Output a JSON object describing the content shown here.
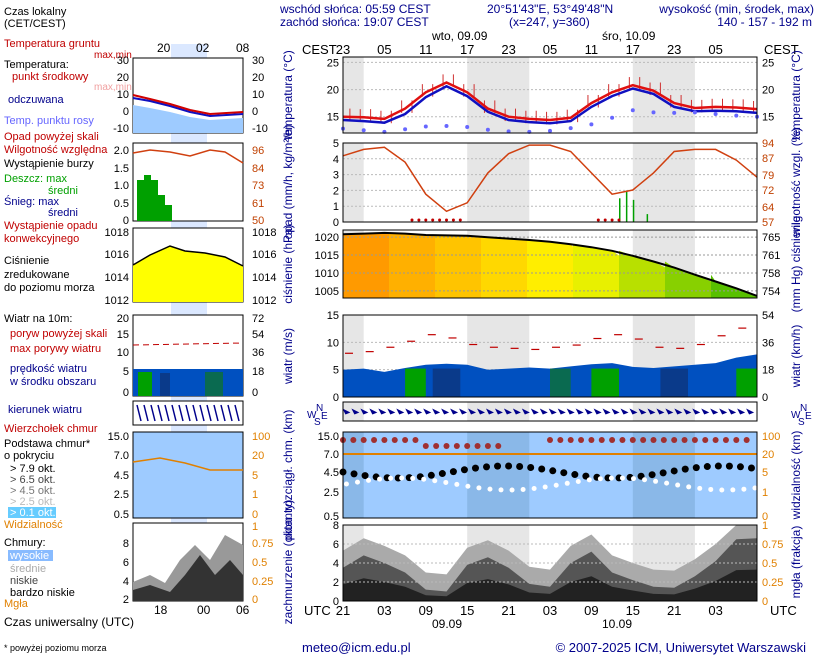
{
  "header": {
    "legend_title": "Czas lokalny (CET/CEST)",
    "sunrise": "wschód słońca: 05:59 CEST",
    "sunset": "zachód słońca: 19:07 CEST",
    "coords": "20°51'43\"E, 53°49'48\"N",
    "grid": "(x=247, y=360)",
    "height_label": "wysokość (min, środek, max)",
    "height_values": "140 - 157 - 192 m",
    "day1": "wto, 09.09",
    "day2": "śro, 10.09",
    "tz_left": "CEST",
    "tz_right": "CEST",
    "utc_left": "UTC",
    "utc_right": "UTC",
    "date1_bottom": "09.09",
    "date2_bottom": "10.09"
  },
  "time_axis": {
    "cest_labels": [
      "23",
      "05",
      "11",
      "17",
      "23",
      "05",
      "11",
      "17",
      "23",
      "05"
    ],
    "utc_labels": [
      "21",
      "03",
      "09",
      "15",
      "21",
      "03",
      "09",
      "15",
      "21",
      "03"
    ]
  },
  "legend": {
    "top_times": [
      "20",
      "02",
      "08"
    ],
    "bottom_times": [
      "18",
      "00",
      "06"
    ],
    "utc_caption": "Czas uniwersalny (UTC)",
    "footnote": "* powyżej poziomu morza",
    "temp": {
      "ground": "Temperatura gruntu",
      "ground_sub": "max,min",
      "title": "Temperatura:",
      "mid": "punkt środkowy",
      "maxmin": "max,min",
      "odczuwana": "odczuwana",
      "dew": "Temp. punktu rosy",
      "yticks": [
        "30",
        "20",
        "10",
        "0",
        "-10"
      ]
    },
    "precip": {
      "above": "Opad powyżej skali",
      "humidity": "Wilgotność względna",
      "storm": "Wystąpienie burzy",
      "rain_max": "Deszcz: max",
      "rain_mid": "średni",
      "snow_max": "Śnieg:   max",
      "snow_mid": "średni",
      "conv1": "Wystąpienie opadu",
      "conv2": "konwekcyjnego",
      "yticks_l": [
        "2.0",
        "1.5",
        "1.0",
        "0.5",
        "0"
      ],
      "yticks_r": [
        "96",
        "84",
        "73",
        "61",
        "50"
      ]
    },
    "pressure": {
      "l1": "Ciśnienie",
      "l2": "zredukowane",
      "l3": "do poziomu morza",
      "yticks": [
        "1018",
        "1016",
        "1014",
        "1012"
      ]
    },
    "wind": {
      "title": "Wiatr na 10m:",
      "gust_above": "poryw powyżej skali",
      "gust_max": "max porywy wiatru",
      "speed": "prędkość wiatru",
      "speed2": "w środku obszaru",
      "yticks_l": [
        "20",
        "15",
        "10",
        "5",
        "0"
      ],
      "yticks_r": [
        "72",
        "54",
        "36",
        "18",
        "0"
      ]
    },
    "direction": {
      "label": "kierunek wiatru"
    },
    "clouds_base": {
      "peak": "Wierzchołek chmur",
      "base1": "Podstawa chmur*",
      "base2": "o pokryciu",
      "o79": "> 7.9 okt.",
      "o65": "> 6.5 okt.",
      "o45": "> 4.5 okt.",
      "o25": "> 2.5 okt.",
      "o01": "> 0.1 okt.",
      "vis": "Widzialność",
      "yticks_l": [
        "15.0",
        "7.0",
        "4.5",
        "2.5",
        "0.5"
      ],
      "yticks_r": [
        "100",
        "20",
        "5",
        "1",
        "0"
      ]
    },
    "clouds": {
      "title": "Chmury:",
      "high": "wysokie",
      "mid": "średnie",
      "low": "niskie",
      "vlow": "bardzo niskie",
      "fog": "Mgła",
      "yticks_l": [
        "8",
        "6",
        "4",
        "2",
        "0"
      ],
      "yticks_r": [
        "1",
        "0.75",
        "0.5",
        "0.25",
        "0"
      ]
    }
  },
  "panels": {
    "temp": {
      "ylabel_l": "temperatura (°C)",
      "ylabel_r": "temperatura (°C)",
      "yticks": [
        "25",
        "20",
        "15"
      ]
    },
    "precip": {
      "ylabel_l": "opad (mm/h, kg/m²/h)",
      "ylabel_r": "wilgotność wzgl. (%)",
      "yticks_l": [
        "5",
        "4",
        "3",
        "2",
        "1",
        "0"
      ],
      "yticks_r": [
        "94",
        "87",
        "79",
        "72",
        "64",
        "57"
      ]
    },
    "pressure": {
      "ylabel_l": "ciśnienie (hPa)",
      "ylabel_r": "(mm Hg) ciśnienie",
      "yticks_l": [
        "1020",
        "1015",
        "1010",
        "1005"
      ],
      "yticks_r": [
        "765",
        "761",
        "758",
        "754"
      ]
    },
    "wind": {
      "ylabel_l": "wiatr (m/s)",
      "ylabel_r": "wiatr (km/h)",
      "yticks_l": [
        "15",
        "10",
        "5",
        "0"
      ],
      "yticks_r": [
        "54",
        "36",
        "18",
        "0"
      ]
    },
    "direction": {
      "compass": "N W S E"
    },
    "cloudbase": {
      "ylabel_l": "pion. rozciągł. chm. (km)",
      "ylabel_r": "widzialność (km)",
      "yticks_l": [
        "15.0",
        "7.0",
        "4.5",
        "2.5",
        "0.5"
      ],
      "yticks_r": [
        "100",
        "20",
        "5",
        "1",
        "0"
      ]
    },
    "cloudcover": {
      "ylabel_l": "zachmurzenie (oktanty)",
      "ylabel_r": "mgła (frakcja)",
      "yticks_l": [
        "8",
        "6",
        "4",
        "2",
        "0"
      ],
      "yticks_r": [
        "1",
        "0.75",
        "0.5",
        "0.25",
        "0"
      ]
    }
  },
  "footer": {
    "email": "meteo@icm.edu.pl",
    "copyright": "© 2007-2025 ICM, Uniwersytet Warszawski"
  },
  "chart_data": {
    "type": "line",
    "x_hours_utc": [
      0,
      3,
      6,
      9,
      12,
      15,
      18,
      21,
      24,
      27,
      30,
      33,
      36,
      39,
      42,
      45,
      48,
      51,
      54,
      57,
      60
    ],
    "temperature_mid": [
      15.0,
      14.9,
      14.6,
      16.5,
      19.5,
      21.3,
      19.5,
      16.5,
      15.0,
      14.6,
      14.4,
      14.8,
      17.5,
      19.5,
      20.8,
      19.8,
      17.5,
      16.6,
      16.8,
      16.7,
      16.4
    ],
    "temperature_feel": [
      14.4,
      14.2,
      13.9,
      15.5,
      18.6,
      20.6,
      18.8,
      15.9,
      14.4,
      14.0,
      13.8,
      14.2,
      16.8,
      18.8,
      20.2,
      19.2,
      16.8,
      16.0,
      16.1,
      16.0,
      15.7
    ],
    "dew_point": [
      12.8,
      12.5,
      12.2,
      12.7,
      13.2,
      13.3,
      13.1,
      12.6,
      12.3,
      12.2,
      12.4,
      12.9,
      13.6,
      14.8,
      16.2,
      15.8,
      15.7,
      15.8,
      15.5,
      15.2,
      15.0
    ],
    "humidity_pct": [
      88,
      91,
      92,
      85,
      70,
      62,
      66,
      80,
      89,
      93,
      93,
      90,
      80,
      70,
      72,
      80,
      90,
      91,
      91,
      86,
      78
    ],
    "pressure_hpa": [
      1020.8,
      1021.0,
      1021.2,
      1021.0,
      1020.6,
      1020.5,
      1020.4,
      1020.0,
      1019.6,
      1019.2,
      1018.7,
      1018.0,
      1017.2,
      1016.2,
      1014.8,
      1013.2,
      1011.5,
      1009.5,
      1007.6,
      1005.7,
      1003.6
    ],
    "wind_speed_ms": [
      5.0,
      5.2,
      4.6,
      5.3,
      5.9,
      6.1,
      5.9,
      5.0,
      5.2,
      5.4,
      5.2,
      5.6,
      6.0,
      6.2,
      5.5,
      5.3,
      5.6,
      5.9,
      6.2,
      7.2,
      7.8
    ],
    "wind_gust_ms": [
      8.0,
      8.3,
      9.1,
      10.2,
      11.4,
      10.8,
      9.6,
      9.1,
      8.9,
      8.7,
      9.1,
      9.5,
      10.7,
      11.4,
      10.6,
      9.1,
      8.9,
      9.6,
      11.2,
      12.6,
      13.5
    ],
    "visibility_km": [
      20,
      20,
      20,
      20,
      20,
      20,
      20,
      20,
      20,
      20,
      20,
      20,
      20,
      20,
      20,
      20,
      20,
      20,
      20,
      20,
      20
    ],
    "cloud_cover_oktas": [
      3.5,
      4.8,
      4.0,
      3.0,
      1.2,
      1.0,
      3.8,
      4.6,
      3.5,
      1.8,
      1.5,
      4.0,
      5.2,
      3.0,
      2.2,
      1.5,
      1.4,
      2.6,
      4.2,
      6.5,
      6.6
    ],
    "precip_mmh": {
      "max_events_hour": [
        40,
        41,
        42,
        44
      ],
      "max_values": [
        1.5,
        2.0,
        1.4,
        0.5
      ]
    },
    "ylim_temp": [
      12,
      26
    ],
    "ylim_pressure": [
      1003,
      1022
    ],
    "ylim_wind": [
      0,
      15
    ]
  }
}
